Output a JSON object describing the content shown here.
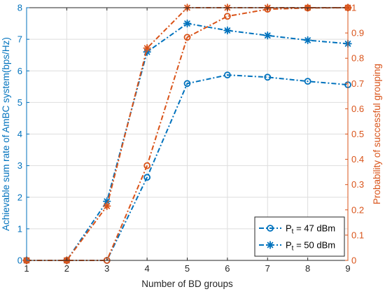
{
  "chart_data": {
    "type": "line",
    "xlabel": "Number of BD groups",
    "ylabel_left": "Achievable sum rate of AmBC system(bps/Hz)",
    "ylabel_right": "Probability of successful grouping",
    "x": [
      1,
      2,
      3,
      4,
      5,
      6,
      7,
      8,
      9
    ],
    "xlim": [
      1,
      9
    ],
    "ylim_left": [
      0,
      8
    ],
    "ylim_right": [
      0,
      1
    ],
    "x_ticks": [
      "1",
      "2",
      "3",
      "4",
      "5",
      "6",
      "7",
      "8",
      "9"
    ],
    "y_ticks_left": [
      "0",
      "1",
      "2",
      "3",
      "4",
      "5",
      "6",
      "7",
      "8"
    ],
    "y_ticks_right": [
      "0",
      "0.1",
      "0.2",
      "0.3",
      "0.4",
      "0.5",
      "0.6",
      "0.7",
      "0.8",
      "0.9",
      "1"
    ],
    "grid": true,
    "legend_position": "bottom-right",
    "legend": [
      {
        "prefix": "P",
        "sub": "t",
        "suffix": " = 47 dBm",
        "marker": "circle"
      },
      {
        "prefix": "P",
        "sub": "t",
        "suffix": " = 50 dBm",
        "marker": "star"
      }
    ],
    "series": [
      {
        "axis": "left",
        "marker": "circle",
        "color": "#0072BD",
        "values": [
          0,
          0,
          0,
          2.63,
          5.6,
          5.87,
          5.8,
          5.67,
          5.56
        ]
      },
      {
        "axis": "left",
        "marker": "star",
        "color": "#0072BD",
        "values": [
          0,
          0,
          1.87,
          6.6,
          7.5,
          7.28,
          7.12,
          6.97,
          6.86
        ]
      },
      {
        "axis": "right",
        "marker": "circle",
        "color": "#D95319",
        "values": [
          0,
          0,
          0,
          0.375,
          0.883,
          0.966,
          0.994,
          0.999,
          1.0
        ]
      },
      {
        "axis": "right",
        "marker": "star",
        "color": "#D95319",
        "values": [
          0,
          0,
          0.215,
          0.84,
          1.0,
          1.0,
          1.0,
          1.0,
          1.0
        ]
      }
    ],
    "colors": {
      "left_axis": "#0072BD",
      "right_axis": "#D95319",
      "grid": "#dedede",
      "frame": "#262626"
    }
  }
}
